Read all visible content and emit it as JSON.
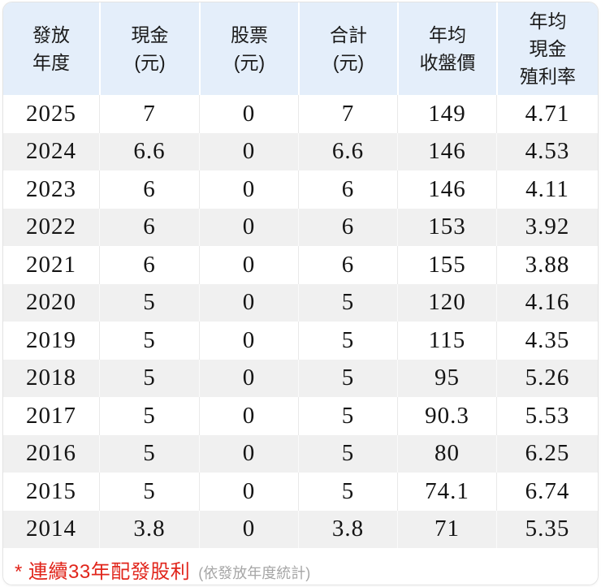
{
  "table": {
    "columns": [
      {
        "key": "year",
        "label": "發放\n年度"
      },
      {
        "key": "cash",
        "label": "現金\n(元)"
      },
      {
        "key": "stock",
        "label": "股票\n(元)"
      },
      {
        "key": "total",
        "label": "合計\n(元)"
      },
      {
        "key": "avg_close",
        "label": "年均\n收盤價"
      },
      {
        "key": "avg_cash_yield",
        "label": "年均\n現金\n殖利率"
      }
    ],
    "rows": [
      {
        "year": "2025",
        "cash": "7",
        "stock": "0",
        "total": "7",
        "avg_close": "149",
        "avg_cash_yield": "4.71"
      },
      {
        "year": "2024",
        "cash": "6.6",
        "stock": "0",
        "total": "6.6",
        "avg_close": "146",
        "avg_cash_yield": "4.53"
      },
      {
        "year": "2023",
        "cash": "6",
        "stock": "0",
        "total": "6",
        "avg_close": "146",
        "avg_cash_yield": "4.11"
      },
      {
        "year": "2022",
        "cash": "6",
        "stock": "0",
        "total": "6",
        "avg_close": "153",
        "avg_cash_yield": "3.92"
      },
      {
        "year": "2021",
        "cash": "6",
        "stock": "0",
        "total": "6",
        "avg_close": "155",
        "avg_cash_yield": "3.88"
      },
      {
        "year": "2020",
        "cash": "5",
        "stock": "0",
        "total": "5",
        "avg_close": "120",
        "avg_cash_yield": "4.16"
      },
      {
        "year": "2019",
        "cash": "5",
        "stock": "0",
        "total": "5",
        "avg_close": "115",
        "avg_cash_yield": "4.35"
      },
      {
        "year": "2018",
        "cash": "5",
        "stock": "0",
        "total": "5",
        "avg_close": "95",
        "avg_cash_yield": "5.26"
      },
      {
        "year": "2017",
        "cash": "5",
        "stock": "0",
        "total": "5",
        "avg_close": "90.3",
        "avg_cash_yield": "5.53"
      },
      {
        "year": "2016",
        "cash": "5",
        "stock": "0",
        "total": "5",
        "avg_close": "80",
        "avg_cash_yield": "6.25"
      },
      {
        "year": "2015",
        "cash": "5",
        "stock": "0",
        "total": "5",
        "avg_close": "74.1",
        "avg_cash_yield": "6.74"
      },
      {
        "year": "2014",
        "cash": "3.8",
        "stock": "0",
        "total": "3.8",
        "avg_close": "71",
        "avg_cash_yield": "5.35"
      }
    ]
  },
  "footnote": {
    "highlight": "* 連續33年配發股利",
    "basis": "(依發放年度統計)"
  },
  "colors": {
    "header_bg": "#e4eefa",
    "stripe_bg": "#f0f0f0",
    "highlight_red": "#e1251b",
    "basis_gray": "#a6a6a6",
    "text": "#1a1a1a",
    "separator": "#e9e9e9"
  }
}
